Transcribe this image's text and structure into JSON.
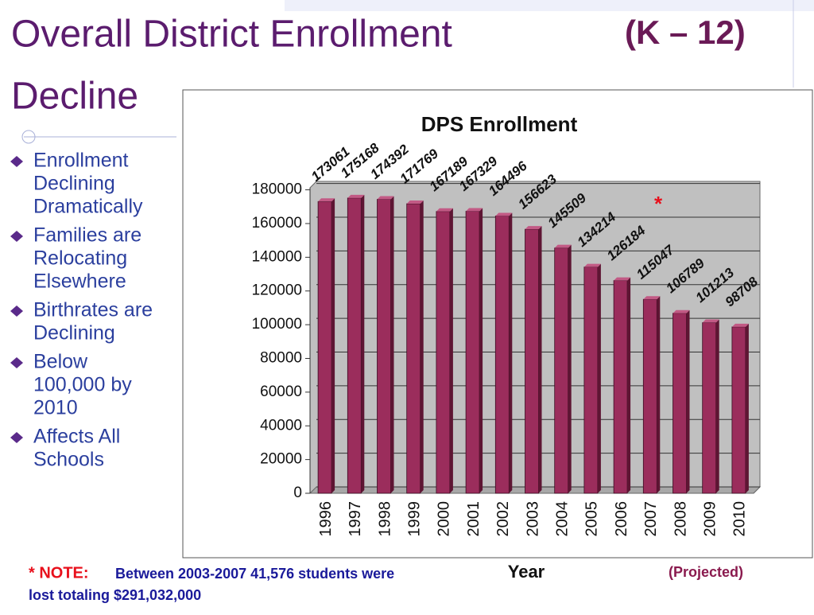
{
  "slide": {
    "title_lines": [
      "Overall District Enrollment",
      "Decline"
    ],
    "subtitle": "(K – 12)",
    "bullets": [
      [
        "Enrollment",
        "Declining",
        "Dramatically"
      ],
      [
        "Families are",
        "Relocating",
        "Elsewhere"
      ],
      [
        "Birthrates are",
        "Declining"
      ],
      [
        "Below",
        "100,000 by",
        "2010"
      ],
      [
        "Affects All",
        "Schools"
      ]
    ],
    "note_marker": "* NOTE:",
    "note_lines": [
      "Between 2003-2007 41,576 students were",
      "lost totaling $291,032,000"
    ]
  },
  "chart_data": {
    "type": "bar",
    "title": "DPS Enrollment",
    "x_label": "Year",
    "annotations": [
      "*",
      "(Projected)"
    ],
    "categories": [
      "1996",
      "1997",
      "1998",
      "1999",
      "2000",
      "2001",
      "2002",
      "2003",
      "2004",
      "2005",
      "2006",
      "2007",
      "2008",
      "2009",
      "2010"
    ],
    "values": [
      173061,
      175168,
      174392,
      171769,
      167189,
      167329,
      164496,
      156623,
      145509,
      134214,
      126184,
      115047,
      106789,
      101213,
      98708
    ],
    "color": "#9b2d5c",
    "ylim": [
      0,
      185000
    ],
    "yticks": [
      0,
      20000,
      40000,
      60000,
      80000,
      100000,
      120000,
      140000,
      160000,
      180000
    ],
    "grid": true
  }
}
